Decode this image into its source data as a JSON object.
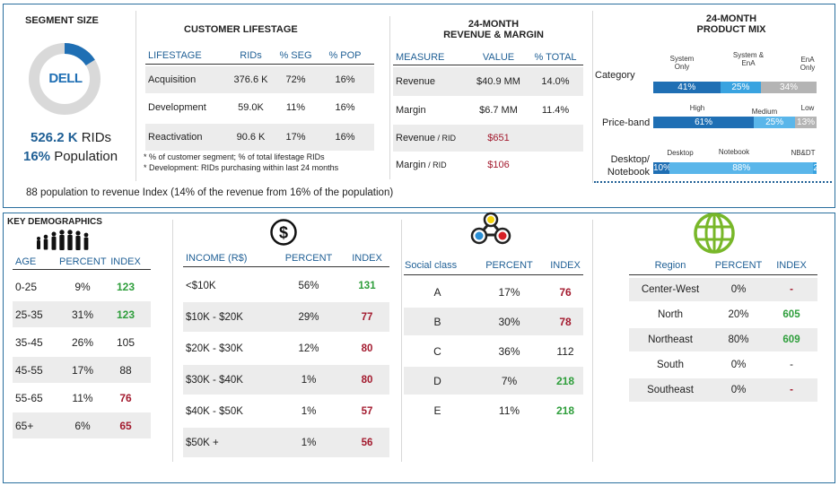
{
  "segment": {
    "title": "SEGMENT SIZE",
    "logo": "DELL",
    "rids_value": "526.2 K",
    "rids_label": "RIDs",
    "pop_value": "16%",
    "pop_label": "Population"
  },
  "lifestage": {
    "title": "CUSTOMER LIFESTAGE",
    "headers": [
      "LIFESTAGE",
      "RIDs",
      "% SEG",
      "% POP"
    ],
    "rows": [
      [
        "Acquisition",
        "376.6 K",
        "72%",
        "16%"
      ],
      [
        "Development",
        "59.0K",
        "11%",
        "16%"
      ],
      [
        "Reactivation",
        "90.6 K",
        "17%",
        "16%"
      ]
    ],
    "notes": [
      "* % of customer segment; % of total lifestage RIDs",
      "* Development: RIDs purchasing within last 24 months"
    ]
  },
  "revenue": {
    "title1": "24-MONTH",
    "title2": "REVENUE & MARGIN",
    "headers": [
      "MEASURE",
      "VALUE",
      "% TOTAL"
    ],
    "rows": [
      {
        "measure": "Revenue",
        "suffix": "",
        "value": "$40.9 MM",
        "pct": "14.0%"
      },
      {
        "measure": "Margin",
        "suffix": "",
        "value": "$6.7 MM",
        "pct": "11.4%"
      },
      {
        "measure": "Revenue",
        "suffix": " / RID",
        "value": "$651",
        "pct": ""
      },
      {
        "measure": "Margin",
        "suffix": " / RID",
        "value": "$106",
        "pct": ""
      }
    ]
  },
  "product_mix": {
    "title1": "24-MONTH",
    "title2": "PRODUCT MIX",
    "category": {
      "label": "Category",
      "segments": [
        {
          "name": "System Only",
          "value": 41,
          "text": "41%",
          "color": "#1f6fb4"
        },
        {
          "name": "System & EnA",
          "value": 25,
          "text": "25%",
          "color": "#39a3e0"
        },
        {
          "name": "EnA Only",
          "value": 34,
          "text": "34%",
          "color": "#b4b4b4"
        }
      ]
    },
    "price": {
      "label": "Price-band",
      "segments": [
        {
          "name": "High",
          "value": 61,
          "text": "61%",
          "color": "#1f6fb4"
        },
        {
          "name": "Medium",
          "value": 25,
          "text": "25%",
          "color": "#5ab6ea"
        },
        {
          "name": "Low",
          "value": 13,
          "text": "13%",
          "color": "#b4b4b4"
        }
      ]
    },
    "device": {
      "label1": "Desktop/",
      "label2": "Notebook",
      "segments": [
        {
          "name": "Desktop",
          "value": 10,
          "text": "10%",
          "color": "#1f6fb4"
        },
        {
          "name": "Notebook",
          "value": 88,
          "text": "88%",
          "color": "#5ab6ea"
        },
        {
          "name": "NB&DT",
          "value": 2,
          "text": "2%",
          "color": "#39a3e0"
        }
      ]
    }
  },
  "index_note": "88 population to revenue Index (14% of the revenue from 16% of the population)",
  "demographics": {
    "title": "KEY DEMOGRAPHICS",
    "headers": [
      "AGE",
      "PERCENT",
      "INDEX"
    ],
    "rows": [
      {
        "label": "0-25",
        "pct": "9%",
        "idx": "123",
        "c": "green"
      },
      {
        "label": "25-35",
        "pct": "31%",
        "idx": "123",
        "c": "green"
      },
      {
        "label": "35-45",
        "pct": "26%",
        "idx": "105",
        "c": ""
      },
      {
        "label": "45-55",
        "pct": "17%",
        "idx": "88",
        "c": ""
      },
      {
        "label": "55-65",
        "pct": "11%",
        "idx": "76",
        "c": "red"
      },
      {
        "label": "65+",
        "pct": "6%",
        "idx": "65",
        "c": "red"
      }
    ]
  },
  "income": {
    "headers": [
      "INCOME (R$)",
      "PERCENT",
      "INDEX"
    ],
    "rows": [
      {
        "label": "<$10K",
        "pct": "56%",
        "idx": "131",
        "c": "green"
      },
      {
        "label": "$10K - $20K",
        "pct": "29%",
        "idx": "77",
        "c": "red"
      },
      {
        "label": "$20K - $30K",
        "pct": "12%",
        "idx": "80",
        "c": "red"
      },
      {
        "label": "$30K - $40K",
        "pct": "1%",
        "idx": "80",
        "c": "red"
      },
      {
        "label": "$40K - $50K",
        "pct": "1%",
        "idx": "57",
        "c": "red"
      },
      {
        "label": "$50K +",
        "pct": "1%",
        "idx": "56",
        "c": "red"
      }
    ]
  },
  "social": {
    "headers": [
      "Social class",
      "PERCENT",
      "INDEX"
    ],
    "rows": [
      {
        "label": "A",
        "pct": "17%",
        "idx": "76",
        "c": "red"
      },
      {
        "label": "B",
        "pct": "30%",
        "idx": "78",
        "c": "red"
      },
      {
        "label": "C",
        "pct": "36%",
        "idx": "112",
        "c": ""
      },
      {
        "label": "D",
        "pct": "7%",
        "idx": "218",
        "c": "green"
      },
      {
        "label": "E",
        "pct": "11%",
        "idx": "218",
        "c": "green"
      }
    ]
  },
  "region": {
    "headers": [
      "Region",
      "PERCENT",
      "INDEX"
    ],
    "rows": [
      {
        "label": "Center-West",
        "pct": "0%",
        "idx": "-",
        "c": "red"
      },
      {
        "label": "North",
        "pct": "20%",
        "idx": "605",
        "c": "green"
      },
      {
        "label": "Northeast",
        "pct": "80%",
        "idx": "609",
        "c": "green"
      },
      {
        "label": "South",
        "pct": "0%",
        "idx": "-",
        "c": ""
      },
      {
        "label": "Southeast",
        "pct": "0%",
        "idx": "-",
        "c": "red"
      }
    ]
  }
}
